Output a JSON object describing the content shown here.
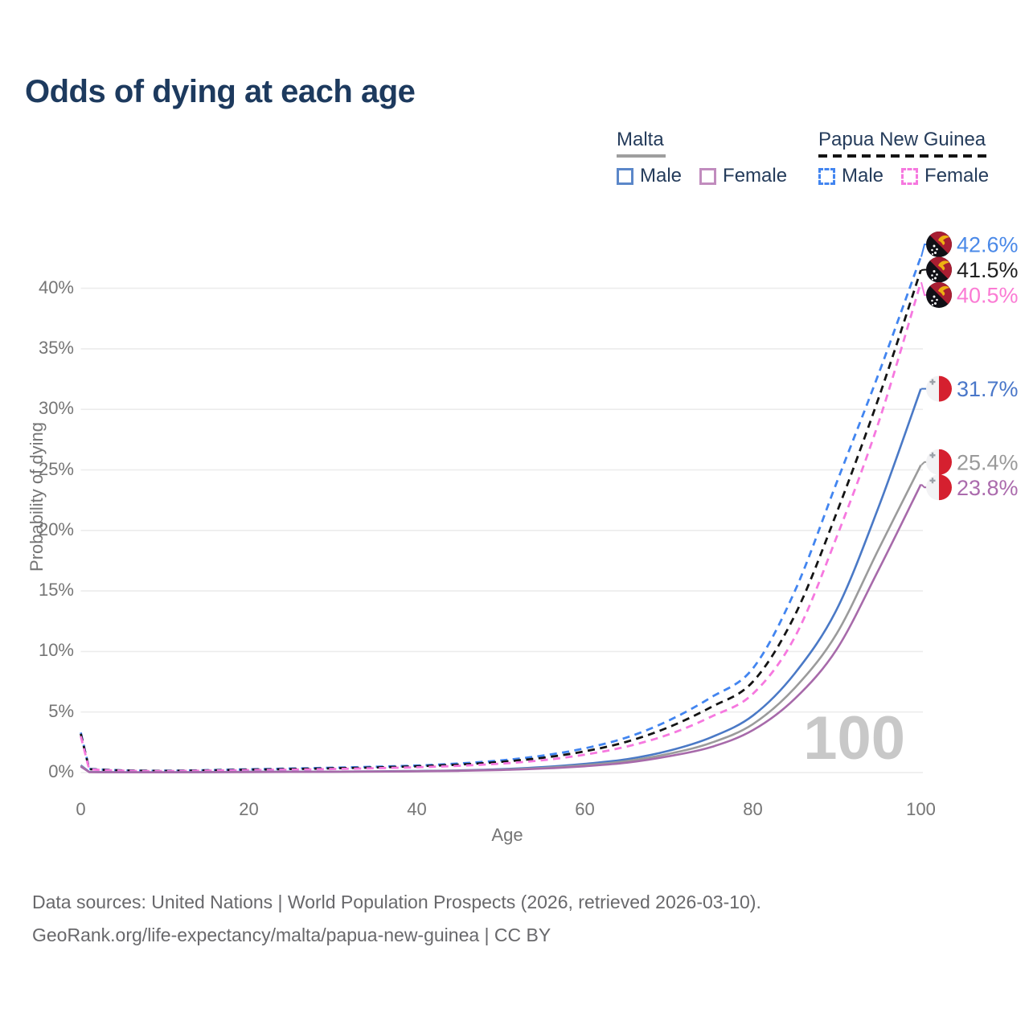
{
  "title": "Odds of dying at each age",
  "legend": {
    "groups": [
      {
        "label": "Malta",
        "line_style": "solid",
        "underline_color": "#9e9e9e",
        "items": [
          {
            "label": "Male",
            "color": "#5b87c9",
            "dash": false
          },
          {
            "label": "Female",
            "color": "#c18cbe",
            "dash": false
          }
        ]
      },
      {
        "label": "Papua New Guinea",
        "line_style": "dashed",
        "underline_color": "#141414",
        "items": [
          {
            "label": "Male",
            "color": "#4285f0",
            "dash": true
          },
          {
            "label": "Female",
            "color": "#f678df",
            "dash": true
          }
        ]
      }
    ]
  },
  "chart_data": {
    "type": "line",
    "title": "Odds of dying at each age",
    "xlabel": "Age",
    "ylabel": "Probability of dying",
    "xlim": [
      0,
      100
    ],
    "ylim_percent": [
      0,
      45
    ],
    "grid": "horizontal",
    "legend_position": "top-right",
    "watermark": "100",
    "x_ticks": [
      {
        "value": 0,
        "label": "0"
      },
      {
        "value": 20,
        "label": "20"
      },
      {
        "value": 40,
        "label": "40"
      },
      {
        "value": 60,
        "label": "60"
      },
      {
        "value": 80,
        "label": "80"
      },
      {
        "value": 100,
        "label": "100"
      }
    ],
    "y_ticks": [
      {
        "value": 0,
        "label": "0%"
      },
      {
        "value": 5,
        "label": "5%"
      },
      {
        "value": 10,
        "label": "10%"
      },
      {
        "value": 15,
        "label": "15%"
      },
      {
        "value": 20,
        "label": "20%"
      },
      {
        "value": 25,
        "label": "25%"
      },
      {
        "value": 30,
        "label": "30%"
      },
      {
        "value": 35,
        "label": "35%"
      },
      {
        "value": 40,
        "label": "40%"
      }
    ],
    "x": [
      0,
      1,
      5,
      10,
      15,
      20,
      25,
      30,
      35,
      40,
      45,
      50,
      55,
      60,
      65,
      70,
      75,
      80,
      85,
      90,
      95,
      100
    ],
    "series": [
      {
        "name": "Papua New Guinea Male",
        "country": "Papua New Guinea",
        "sex": "Male",
        "color": "#4285f0",
        "label_color": "#4a89e8",
        "dash": true,
        "flag": "png",
        "end_label": "42.6%",
        "values": [
          3.3,
          0.3,
          0.18,
          0.15,
          0.2,
          0.27,
          0.33,
          0.4,
          0.48,
          0.58,
          0.75,
          1.0,
          1.4,
          2.0,
          2.9,
          4.3,
          6.2,
          8.6,
          15.0,
          24.0,
          33.0,
          42.6
        ]
      },
      {
        "name": "Papua New Guinea (both sexes)",
        "country": "Papua New Guinea",
        "sex": "Both",
        "color": "#141414",
        "label_color": "#1f1f1f",
        "dash": true,
        "flag": "png",
        "end_label": "41.5%",
        "values": [
          3.2,
          0.28,
          0.17,
          0.14,
          0.18,
          0.24,
          0.29,
          0.35,
          0.42,
          0.52,
          0.66,
          0.88,
          1.22,
          1.75,
          2.55,
          3.75,
          5.4,
          7.5,
          13.0,
          21.5,
          31.0,
          41.5
        ]
      },
      {
        "name": "Papua New Guinea Female",
        "country": "Papua New Guinea",
        "sex": "Female",
        "color": "#f678df",
        "label_color": "#fb7bd4",
        "dash": true,
        "flag": "png",
        "end_label": "40.5%",
        "values": [
          3.0,
          0.26,
          0.15,
          0.12,
          0.16,
          0.2,
          0.24,
          0.29,
          0.36,
          0.44,
          0.56,
          0.74,
          1.02,
          1.48,
          2.15,
          3.15,
          4.6,
          6.5,
          11.2,
          19.5,
          29.0,
          40.5
        ]
      },
      {
        "name": "Malta Male",
        "country": "Malta",
        "sex": "Male",
        "color": "#4a79c6",
        "label_color": "#4a77c9",
        "dash": false,
        "flag": "malta",
        "end_label": "31.7%",
        "values": [
          0.6,
          0.05,
          0.02,
          0.02,
          0.04,
          0.06,
          0.07,
          0.08,
          0.1,
          0.13,
          0.18,
          0.28,
          0.45,
          0.72,
          1.1,
          1.8,
          2.9,
          4.7,
          8.2,
          13.5,
          22.0,
          31.7
        ]
      },
      {
        "name": "Malta (both sexes)",
        "country": "Malta",
        "sex": "Both",
        "color": "#9b9b9b",
        "label_color": "#9a9a9a",
        "dash": false,
        "flag": "malta",
        "end_label": "25.4%",
        "values": [
          0.55,
          0.04,
          0.02,
          0.02,
          0.03,
          0.05,
          0.06,
          0.07,
          0.09,
          0.11,
          0.16,
          0.24,
          0.38,
          0.61,
          0.95,
          1.55,
          2.45,
          4.0,
          7.0,
          11.5,
          18.5,
          25.4
        ]
      },
      {
        "name": "Malta Female",
        "country": "Malta",
        "sex": "Female",
        "color": "#a76aaa",
        "label_color": "#ab6bad",
        "dash": false,
        "flag": "malta",
        "end_label": "23.8%",
        "values": [
          0.5,
          0.04,
          0.02,
          0.02,
          0.03,
          0.04,
          0.05,
          0.06,
          0.08,
          0.1,
          0.14,
          0.21,
          0.33,
          0.52,
          0.82,
          1.35,
          2.1,
          3.5,
          6.1,
          10.2,
          16.8,
          23.8
        ]
      }
    ]
  },
  "footer": {
    "line1": "Data sources: United Nations | World Population Prospects (2026, retrieved 2026-03-10).",
    "line2": "GeoRank.org/life-expectancy/malta/papua-new-guinea | CC BY"
  }
}
